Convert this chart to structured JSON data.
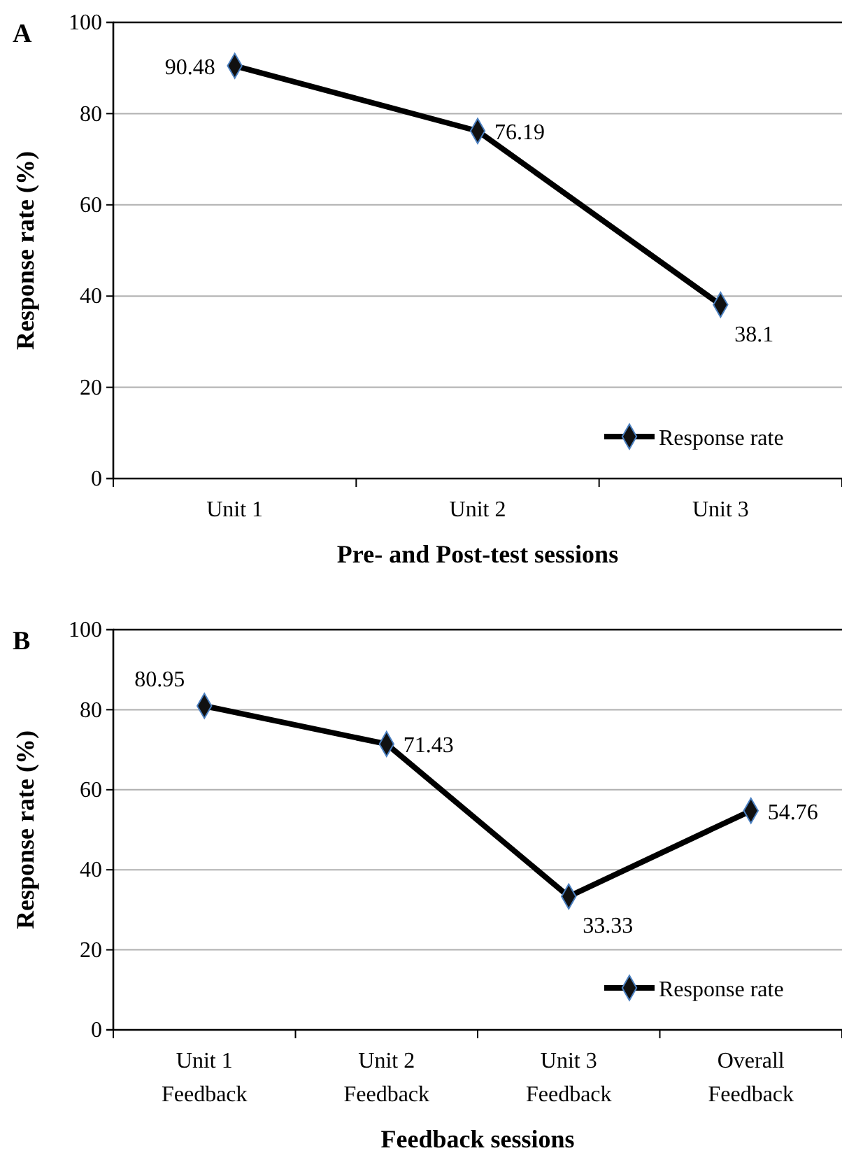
{
  "chart_data": [
    {
      "type": "line",
      "title": "A",
      "xlabel": "Pre- and Post-test sessions",
      "ylabel": "Response rate (%)",
      "categories": [
        "Unit 1",
        "Unit 2",
        "Unit 3"
      ],
      "series": [
        {
          "name": "Response rate",
          "color": "#000000",
          "values": [
            90.48,
            76.19,
            38.1
          ]
        }
      ],
      "ylim": [
        0,
        100
      ],
      "yticks": [
        0,
        20,
        40,
        60,
        80,
        100
      ],
      "grid": "y",
      "legend": "bottom right",
      "marker": "diamond",
      "line_style": "solid",
      "data_labels": true
    },
    {
      "type": "line",
      "title": "B",
      "xlabel": "Feedback sessions",
      "ylabel": "Response rate (%)",
      "categories": [
        "Unit 1\nFeedback",
        "Unit 2\nFeedback",
        "Unit 3\nFeedback",
        "Overall\nFeedback"
      ],
      "series": [
        {
          "name": "Response rate",
          "color": "#000000",
          "values": [
            80.95,
            71.43,
            33.33,
            54.76
          ]
        }
      ],
      "ylim": [
        0,
        100
      ],
      "yticks": [
        0,
        20,
        40,
        60,
        80,
        100
      ],
      "grid": "y",
      "legend": "bottom right",
      "marker": "diamond",
      "line_style": "solid",
      "data_labels": true
    }
  ]
}
